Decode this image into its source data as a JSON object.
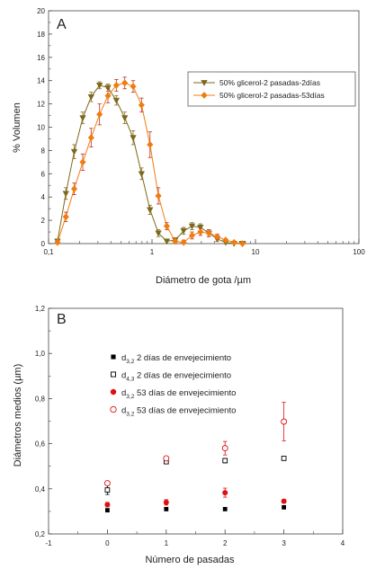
{
  "chart_data": [
    {
      "panel": "A",
      "type": "line",
      "xlabel": "Diámetro de gota /µm",
      "ylabel": "% Volumen",
      "x_scale": "log",
      "xlim": [
        0.1,
        100
      ],
      "ylim": [
        0,
        20
      ],
      "x_tick_labels": [
        "0,1",
        "1",
        "10",
        "100"
      ],
      "y_ticks": [
        0,
        2,
        4,
        6,
        8,
        10,
        12,
        14,
        16,
        18,
        20
      ],
      "grid": false,
      "legend": "top-right",
      "series": [
        {
          "name": "50% glicerol-2 pasadas-2días",
          "color": "#7a6a1a",
          "marker": "triangle-down",
          "x": [
            0.122,
            0.147,
            0.177,
            0.214,
            0.258,
            0.311,
            0.375,
            0.452,
            0.545,
            0.657,
            0.792,
            0.956,
            1.152,
            1.389,
            1.675,
            2.02,
            2.436,
            2.937,
            3.541,
            4.27,
            5.148,
            6.208,
            7.486
          ],
          "y": [
            0.2,
            4.3,
            7.9,
            10.8,
            12.6,
            13.6,
            13.4,
            12.3,
            10.8,
            9.1,
            6.0,
            2.9,
            0.9,
            0.2,
            0.3,
            1.1,
            1.5,
            1.4,
            0.9,
            0.4,
            0.1,
            0,
            0
          ],
          "error": [
            0.2,
            0.5,
            0.6,
            0.5,
            0.4,
            0.3,
            0.3,
            0.4,
            0.5,
            0.6,
            0.5,
            0.4,
            0.3,
            0.2,
            0.2,
            0.3,
            0.3,
            0.3,
            0.3,
            0.2,
            0.1,
            0,
            0
          ]
        },
        {
          "name": "50% glicerol-2 pasadas-53días",
          "color": "#f07c10",
          "marker": "diamond",
          "x": [
            0.122,
            0.147,
            0.177,
            0.214,
            0.258,
            0.311,
            0.375,
            0.452,
            0.545,
            0.657,
            0.792,
            0.956,
            1.152,
            1.389,
            1.675,
            2.02,
            2.436,
            2.937,
            3.541,
            4.27,
            5.148,
            6.208,
            7.486
          ],
          "y": [
            0.1,
            2.3,
            4.7,
            7.0,
            9.1,
            11.1,
            12.7,
            13.6,
            13.8,
            13.5,
            11.9,
            8.5,
            4.1,
            1.5,
            0.2,
            0.1,
            0.7,
            1.0,
            0.9,
            0.6,
            0.3,
            0.1,
            0
          ],
          "error": [
            0.1,
            0.4,
            0.5,
            0.7,
            0.8,
            0.9,
            0.6,
            0.5,
            0.5,
            0.5,
            0.6,
            1.1,
            0.7,
            0.3,
            0.2,
            0.2,
            0.3,
            0.3,
            0.3,
            0.2,
            0.1,
            0.1,
            0
          ]
        }
      ]
    },
    {
      "panel": "B",
      "type": "scatter",
      "xlabel": "Número de pasadas",
      "ylabel": "Diámetros medios (µm)",
      "xlim": [
        -1,
        4
      ],
      "ylim": [
        0.2,
        1.2
      ],
      "x_ticks": [
        -1,
        0,
        1,
        2,
        3,
        4
      ],
      "y_tick_labels": [
        "0,2",
        "0,4",
        "0,6",
        "0,8",
        "1,0",
        "1,2"
      ],
      "y_ticks": [
        0.2,
        0.4,
        0.6,
        0.8,
        1.0,
        1.2
      ],
      "grid": false,
      "legend": "top-left",
      "series": [
        {
          "name": "d3,2 2 días de envejecimiento",
          "legend_parts": [
            "d",
            "3,2",
            " 2 días de envejecimiento"
          ],
          "color": "#000000",
          "marker": "square-filled",
          "x": [
            0,
            1,
            2,
            3
          ],
          "y": [
            0.305,
            0.31,
            0.31,
            0.318
          ],
          "error": [
            0.005,
            0.005,
            0.004,
            0.005
          ]
        },
        {
          "name": "d4,3 2 días de envejecimiento",
          "legend_parts": [
            "d",
            "4,3",
            " 2 días de envejecimiento"
          ],
          "color": "#000000",
          "marker": "square-open",
          "x": [
            0,
            1,
            2,
            3
          ],
          "y": [
            0.395,
            0.52,
            0.525,
            0.535
          ],
          "error": [
            0.02,
            0.006,
            0.01,
            0.005
          ]
        },
        {
          "name": "d3,2 53 días de envejecimiento",
          "legend_parts": [
            "d",
            "3,2",
            " 53 días de envejecimiento"
          ],
          "color": "#e01010",
          "marker": "circle-filled",
          "x": [
            0,
            1,
            2,
            3
          ],
          "y": [
            0.33,
            0.34,
            0.383,
            0.345
          ],
          "error": [
            0.01,
            0.012,
            0.02,
            0.008
          ]
        },
        {
          "name": "d3,2 53 días de envejecimiento",
          "legend_parts": [
            "d",
            "3,2",
            " 53 días de envejecimiento"
          ],
          "color": "#e01010",
          "marker": "circle-open",
          "x": [
            0,
            1,
            2,
            3
          ],
          "y": [
            0.425,
            0.535,
            0.58,
            0.698
          ],
          "error": [
            0.01,
            0.008,
            0.03,
            0.085
          ]
        }
      ]
    }
  ]
}
